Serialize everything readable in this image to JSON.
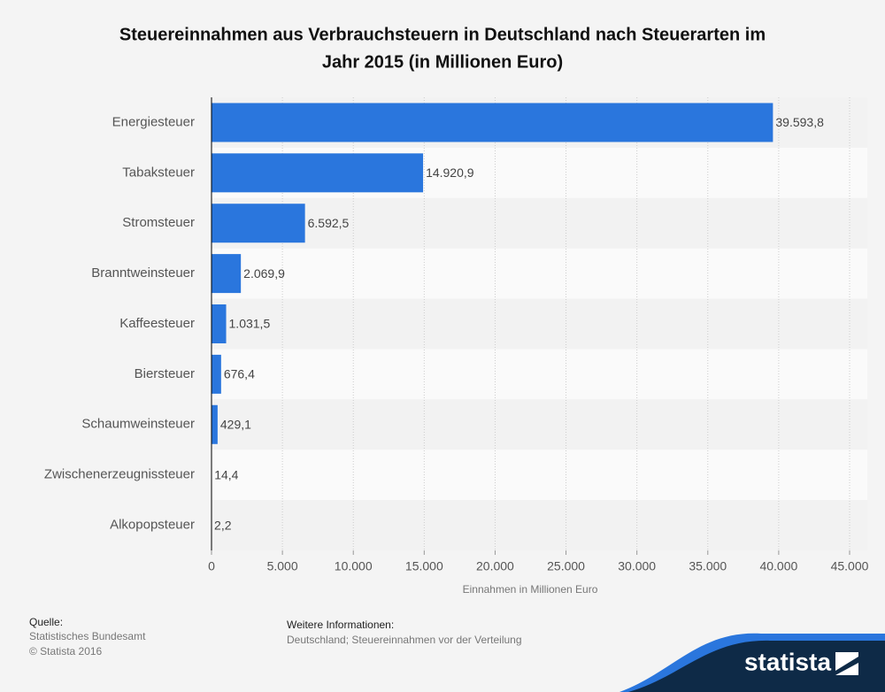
{
  "chart_data": {
    "type": "bar",
    "orientation": "horizontal",
    "title": [
      "Steuereinnahmen aus Verbrauchsteuern in Deutschland nach Steuerarten im",
      "Jahr 2015 (in Millionen Euro)"
    ],
    "categories": [
      "Energiesteuer",
      "Tabaksteuer",
      "Stromsteuer",
      "Branntweinsteuer",
      "Kaffeesteuer",
      "Biersteuer",
      "Schaumweinsteuer",
      "Zwischenerzeugnissteuer",
      "Alkopopsteuer"
    ],
    "values": [
      39593.8,
      14920.9,
      6592.5,
      2069.9,
      1031.5,
      676.4,
      429.1,
      14.4,
      2.2
    ],
    "value_labels": [
      "39.593,8",
      "14.920,9",
      "6.592,5",
      "2.069,9",
      "1.031,5",
      "676,4",
      "429,1",
      "14,4",
      "2,2"
    ],
    "color": "#2a76dd",
    "xlim": [
      0,
      45000
    ],
    "xticks": [
      0,
      {
        "value": 5000,
        "label": "5.000"
      },
      {
        "value": 10000,
        "label": "10.000"
      },
      {
        "value": 15000,
        "label": "15.000"
      },
      {
        "value": 20000,
        "label": "20.000"
      },
      {
        "value": 25000,
        "label": "25.000"
      },
      {
        "value": 30000,
        "label": "30.000"
      },
      {
        "value": 35000,
        "label": "35.000"
      },
      {
        "value": 40000,
        "label": "40.000"
      },
      {
        "value": 45000,
        "label": "45.000"
      }
    ],
    "xlabel": "Einnahmen in Millionen Euro",
    "grid": true
  },
  "footer": {
    "source_heading": "Quelle:",
    "source": "Statistisches Bundesamt",
    "copyright": "© Statista 2016",
    "info_heading": "Weitere Informationen:",
    "info": "Deutschland; Steuereinnahmen vor der Verteilung",
    "logo": "statista"
  }
}
